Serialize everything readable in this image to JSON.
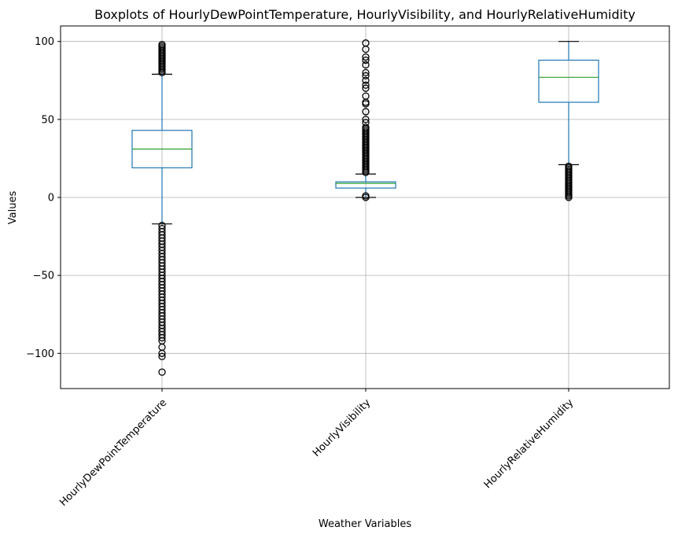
{
  "chart_data": {
    "type": "boxplot",
    "title": "Boxplots of HourlyDewPointTemperature, HourlyVisibility, and HourlyRelativeHumidity",
    "xlabel": "Weather Variables",
    "ylabel": "Values",
    "ylim": [
      -122,
      110
    ],
    "yticks": [
      100,
      50,
      0,
      -50,
      -100
    ],
    "ytick_labels": [
      "100",
      "50",
      "0",
      "−50",
      "−100"
    ],
    "grid": true,
    "colors": {
      "box": "#1f77b4",
      "median": "#2ca02c",
      "flier": "#000000"
    },
    "categories": [
      "HourlyDewPointTemperature",
      "HourlyVisibility",
      "HourlyRelativeHumidity"
    ],
    "boxes": [
      {
        "name": "HourlyDewPointTemperature",
        "q1": 19,
        "median": 31,
        "q3": 43,
        "whisker_low": -17,
        "whisker_high": 79,
        "fliers_high": [
          80,
          81,
          82,
          83,
          84,
          85,
          86,
          87,
          88,
          89,
          90,
          91,
          92,
          93,
          94,
          95,
          96,
          97,
          98
        ],
        "fliers_low": [
          -18,
          -20,
          -22,
          -24,
          -26,
          -28,
          -30,
          -32,
          -34,
          -36,
          -38,
          -40,
          -42,
          -44,
          -46,
          -48,
          -50,
          -52,
          -54,
          -56,
          -58,
          -60,
          -62,
          -64,
          -66,
          -68,
          -70,
          -72,
          -74,
          -76,
          -78,
          -80,
          -82,
          -84,
          -86,
          -88,
          -90,
          -92,
          -96,
          -100,
          -102,
          -112
        ]
      },
      {
        "name": "HourlyVisibility",
        "q1": 6,
        "median": 9,
        "q3": 10,
        "whisker_low": 0,
        "whisker_high": 15,
        "fliers_high": [
          16,
          17,
          18,
          19,
          20,
          21,
          22,
          23,
          24,
          25,
          26,
          27,
          28,
          29,
          30,
          31,
          32,
          33,
          34,
          35,
          36,
          37,
          38,
          39,
          40,
          41,
          42,
          43,
          44,
          45,
          48,
          50,
          55,
          60,
          61,
          65,
          70,
          72,
          75,
          78,
          80,
          85,
          88,
          90,
          95,
          99
        ],
        "fliers_low": [
          0,
          1
        ]
      },
      {
        "name": "HourlyRelativeHumidity",
        "q1": 61,
        "median": 77,
        "q3": 88,
        "whisker_low": 21,
        "whisker_high": 100,
        "fliers_high": [],
        "fliers_low": [
          0,
          1,
          2,
          3,
          4,
          5,
          6,
          7,
          8,
          9,
          10,
          11,
          12,
          13,
          14,
          15,
          16,
          17,
          18,
          19,
          20
        ]
      }
    ]
  }
}
